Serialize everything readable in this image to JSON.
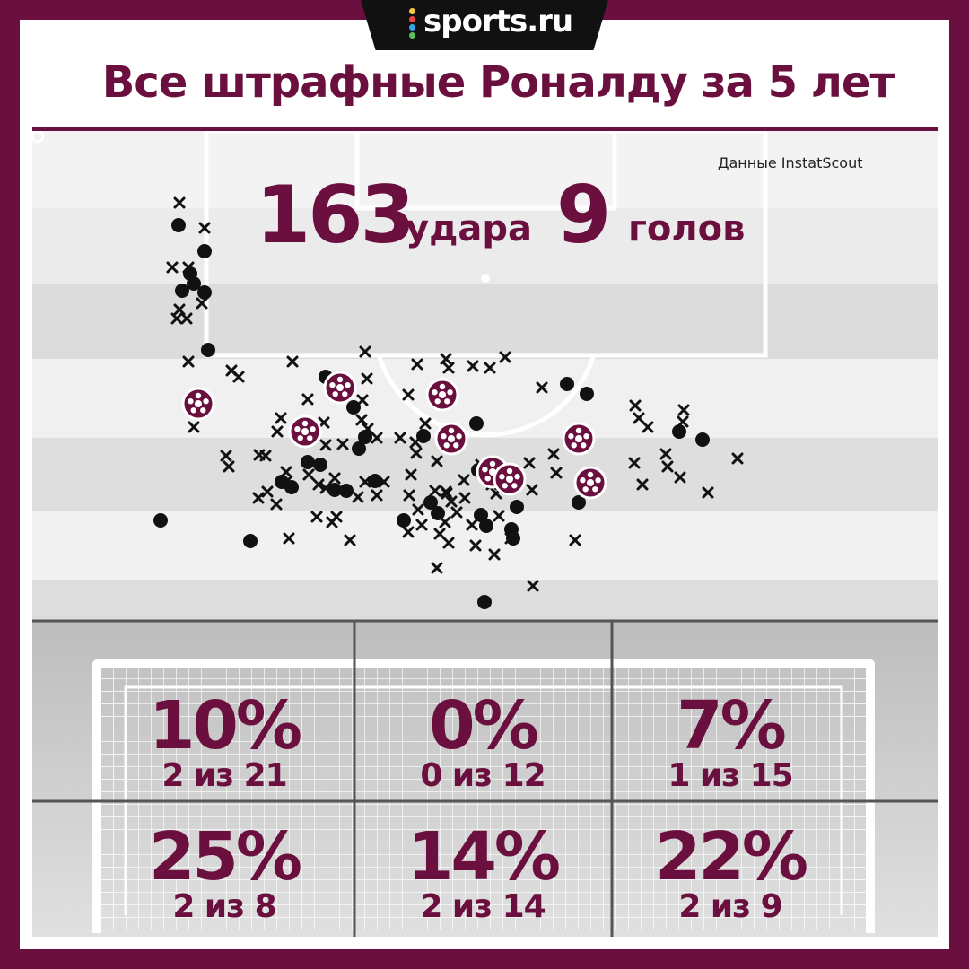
{
  "brand": {
    "logo_text": "sports.ru",
    "dot_colors": [
      "#f2c84b",
      "#e8453c",
      "#3aa3e3",
      "#5ac05a"
    ]
  },
  "colors": {
    "accent": "#6a0f3e",
    "marker": "#111111",
    "pitch_light": "#f3f3f3",
    "pitch_dark": "#dcdcdc"
  },
  "header": {
    "title": "Все штрафные Роналду за 5 лет"
  },
  "source": "Данные InstatScout",
  "summary": {
    "shots_value": "163",
    "shots_label": "удара",
    "goals_value": "9",
    "goals_label": "голов"
  },
  "chart_data": [
    {
      "type": "scatter",
      "title": "Все штрафные Роналду за 5 лет",
      "series": [
        {
          "marker": "cross",
          "points": [
            [
              200,
              226
            ],
            [
              228,
              254
            ],
            [
              192,
              298
            ],
            [
              210,
              298
            ],
            [
              200,
              345
            ],
            [
              225,
              338
            ],
            [
              197,
              355
            ],
            [
              208,
              355
            ],
            [
              210,
              403
            ],
            [
              258,
              413
            ],
            [
              266,
              420
            ],
            [
              326,
              403
            ],
            [
              407,
              392
            ],
            [
              409,
              422
            ],
            [
              455,
              440
            ],
            [
              465,
              406
            ],
            [
              497,
              400
            ],
            [
              500,
              410
            ],
            [
              527,
              408
            ],
            [
              546,
              410
            ],
            [
              563,
              398
            ],
            [
              604,
              432
            ],
            [
              404,
              446
            ],
            [
              343,
              445
            ],
            [
              361,
              471
            ],
            [
              403,
              468
            ],
            [
              313,
              466
            ],
            [
              309,
              481
            ],
            [
              363,
              496
            ],
            [
              382,
              495
            ],
            [
              410,
              478
            ],
            [
              420,
              488
            ],
            [
              446,
              488
            ],
            [
              463,
              493
            ],
            [
              474,
              472
            ],
            [
              464,
              505
            ],
            [
              458,
              529
            ],
            [
              456,
              552
            ],
            [
              466,
              568
            ],
            [
              470,
              585
            ],
            [
              455,
              593
            ],
            [
              420,
              552
            ],
            [
              428,
              537
            ],
            [
              407,
              537
            ],
            [
              399,
              554
            ],
            [
              373,
              533
            ],
            [
              363,
              544
            ],
            [
              355,
              540
            ],
            [
              344,
              529
            ],
            [
              320,
              536
            ],
            [
              308,
              562
            ],
            [
              298,
              548
            ],
            [
              288,
              555
            ],
            [
              289,
              507
            ],
            [
              296,
              508
            ],
            [
              252,
              508
            ],
            [
              255,
              520
            ],
            [
              319,
              526
            ],
            [
              353,
              576
            ],
            [
              375,
              576
            ],
            [
              370,
              582
            ],
            [
              390,
              602
            ],
            [
              322,
              600
            ],
            [
              487,
              514
            ],
            [
              498,
              550
            ],
            [
              503,
              559
            ],
            [
              517,
              535
            ],
            [
              518,
              555
            ],
            [
              509,
              571
            ],
            [
              496,
              582
            ],
            [
              497,
              548
            ],
            [
              485,
              547
            ],
            [
              490,
              595
            ],
            [
              500,
              605
            ],
            [
              536,
              518
            ],
            [
              548,
              540
            ],
            [
              556,
              527
            ],
            [
              590,
              516
            ],
            [
              593,
              546
            ],
            [
              620,
              527
            ],
            [
              617,
              506
            ],
            [
              553,
              550
            ],
            [
              556,
              575
            ],
            [
              526,
              585
            ],
            [
              530,
              608
            ],
            [
              551,
              618
            ],
            [
              569,
              600
            ],
            [
              487,
              633
            ],
            [
              594,
              653
            ],
            [
              641,
              602
            ],
            [
              708,
              452
            ],
            [
              712,
              466
            ],
            [
              722,
              476
            ],
            [
              762,
              457
            ],
            [
              761,
              470
            ],
            [
              707,
              516
            ],
            [
              742,
              506
            ],
            [
              744,
              520
            ],
            [
              758,
              532
            ],
            [
              716,
              540
            ],
            [
              789,
              549
            ],
            [
              822,
              511
            ],
            [
              216,
              476
            ]
          ]
        },
        {
          "marker": "dot",
          "points": [
            [
              199,
              251
            ],
            [
              228,
              280
            ],
            [
              212,
              305
            ],
            [
              216,
              316
            ],
            [
              203,
              324
            ],
            [
              228,
              326
            ],
            [
              232,
              390
            ],
            [
              363,
              420
            ],
            [
              394,
              454
            ],
            [
              407,
              487
            ],
            [
              400,
              500
            ],
            [
              472,
              486
            ],
            [
              531,
              472
            ],
            [
              343,
              515
            ],
            [
              357,
              518
            ],
            [
              314,
              537
            ],
            [
              325,
              543
            ],
            [
              373,
              546
            ],
            [
              386,
              547
            ],
            [
              418,
              536
            ],
            [
              480,
              560
            ],
            [
              488,
              572
            ],
            [
              450,
              580
            ],
            [
              533,
              524
            ],
            [
              536,
              574
            ],
            [
              542,
              586
            ],
            [
              570,
              590
            ],
            [
              572,
              600
            ],
            [
              576,
              565
            ],
            [
              645,
              560
            ],
            [
              632,
              428
            ],
            [
              654,
              439
            ],
            [
              757,
              481
            ],
            [
              783,
              490
            ],
            [
              179,
              580
            ],
            [
              279,
              603
            ],
            [
              540,
              671
            ]
          ]
        },
        {
          "marker": "goal",
          "points": [
            [
              221,
              450
            ],
            [
              379,
              432
            ],
            [
              493,
              440
            ],
            [
              340,
              481
            ],
            [
              503,
              489
            ],
            [
              645,
              489
            ],
            [
              549,
              526
            ],
            [
              568,
              534
            ],
            [
              658,
              538
            ]
          ]
        }
      ]
    },
    {
      "type": "table",
      "cells": [
        {
          "zone": "top-left",
          "pct": "10%",
          "frac": "2 из 21"
        },
        {
          "zone": "top-center",
          "pct": "0%",
          "frac": "0 из 12"
        },
        {
          "zone": "top-right",
          "pct": "7%",
          "frac": "1 из 15"
        },
        {
          "zone": "bottom-left",
          "pct": "25%",
          "frac": "2 из 8"
        },
        {
          "zone": "bottom-center",
          "pct": "14%",
          "frac": "2 из 14"
        },
        {
          "zone": "bottom-right",
          "pct": "22%",
          "frac": "2 из 9"
        }
      ]
    }
  ]
}
